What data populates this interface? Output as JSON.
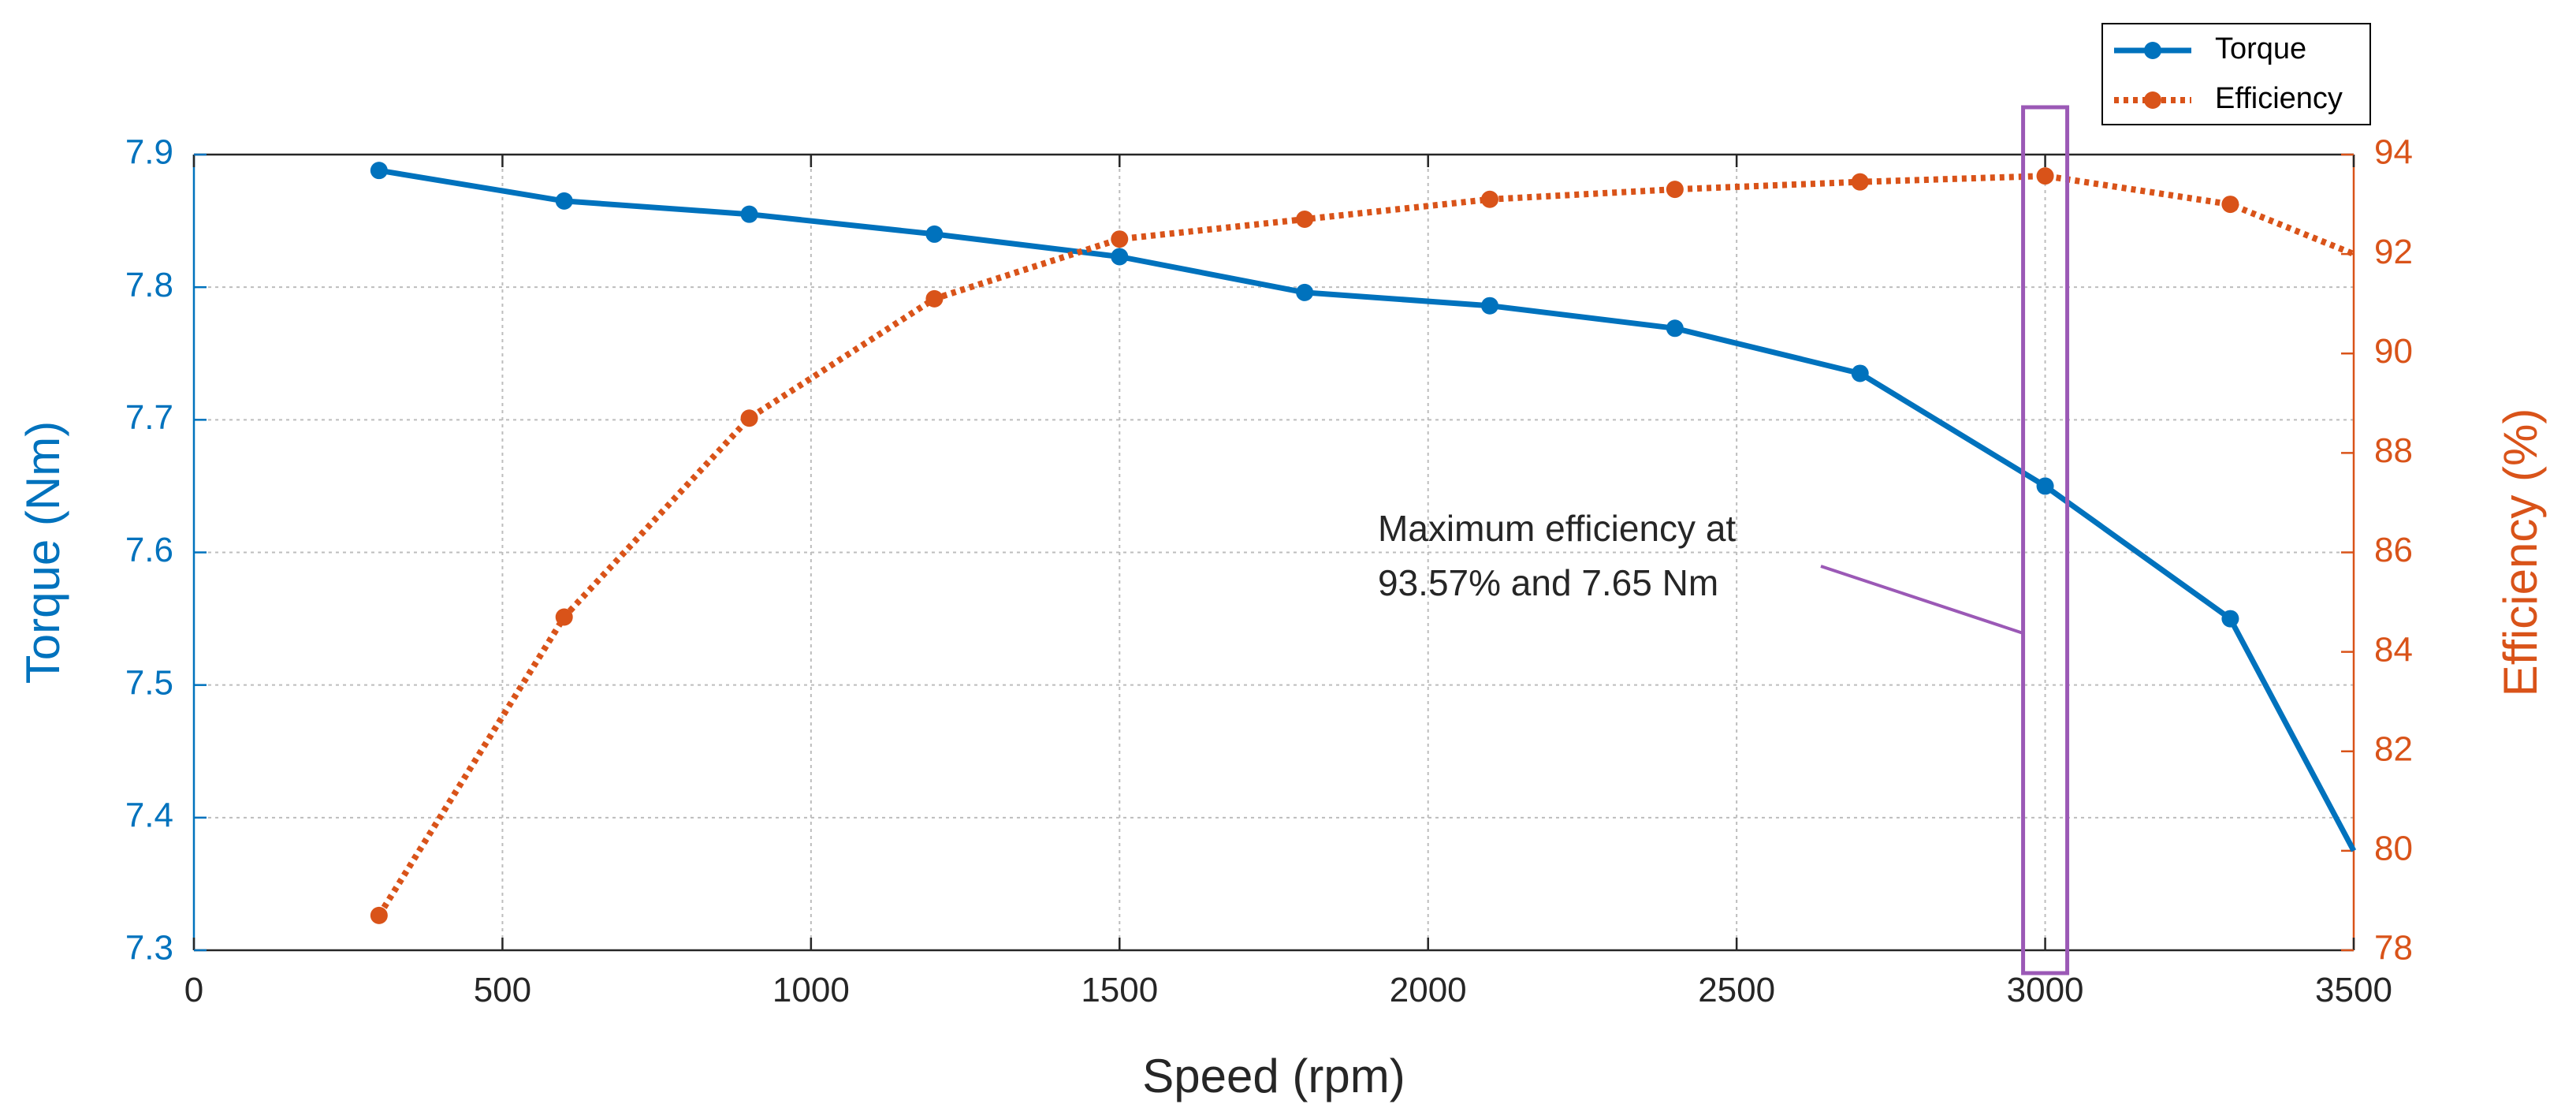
{
  "colors": {
    "torque": "#0072BD",
    "efficiency": "#D95319",
    "annotation": "#9b59b6",
    "axis": "#262626",
    "grid": "#bdbdbd"
  },
  "chart_data": {
    "type": "line",
    "xlabel": "Speed (rpm)",
    "ylabel_left": "Torque (Nm)",
    "ylabel_right": "Efficiency (%)",
    "xlim": [
      0,
      3500
    ],
    "ylim_left": [
      7.3,
      7.9
    ],
    "ylim_right": [
      78,
      94
    ],
    "x_ticks": [
      "0",
      "500",
      "1000",
      "1500",
      "2000",
      "2500",
      "3000",
      "3500"
    ],
    "y_left_ticks": [
      "7.3",
      "7.4",
      "7.5",
      "7.6",
      "7.7",
      "7.8",
      "7.9"
    ],
    "y_right_ticks": [
      "78",
      "80",
      "82",
      "84",
      "86",
      "88",
      "90",
      "92",
      "94"
    ],
    "grid": true,
    "legend_position": "top-right",
    "series": [
      {
        "name": "Torque",
        "axis": "left",
        "style": "solid",
        "x": [
          300,
          600,
          900,
          1200,
          1500,
          1800,
          2100,
          2400,
          2700,
          3000,
          3300,
          3500
        ],
        "values": [
          7.888,
          7.865,
          7.855,
          7.84,
          7.823,
          7.796,
          7.786,
          7.769,
          7.735,
          7.65,
          7.55,
          7.375
        ],
        "markers": [
          true,
          true,
          true,
          true,
          true,
          true,
          true,
          true,
          true,
          true,
          true,
          false
        ]
      },
      {
        "name": "Efficiency",
        "axis": "right",
        "style": "dotted",
        "x": [
          300,
          600,
          900,
          1200,
          1500,
          1800,
          2100,
          2400,
          2700,
          3000,
          3300,
          3500
        ],
        "values": [
          78.7,
          84.7,
          88.7,
          91.1,
          92.3,
          92.7,
          93.1,
          93.3,
          93.45,
          93.57,
          93.0,
          92.0
        ],
        "markers": [
          true,
          true,
          true,
          true,
          true,
          true,
          true,
          true,
          true,
          true,
          true,
          false
        ]
      }
    ],
    "annotation": {
      "text_lines": [
        "Maximum efficiency at",
        "93.57% and 7.65 Nm"
      ],
      "highlight_x": 3000
    }
  }
}
